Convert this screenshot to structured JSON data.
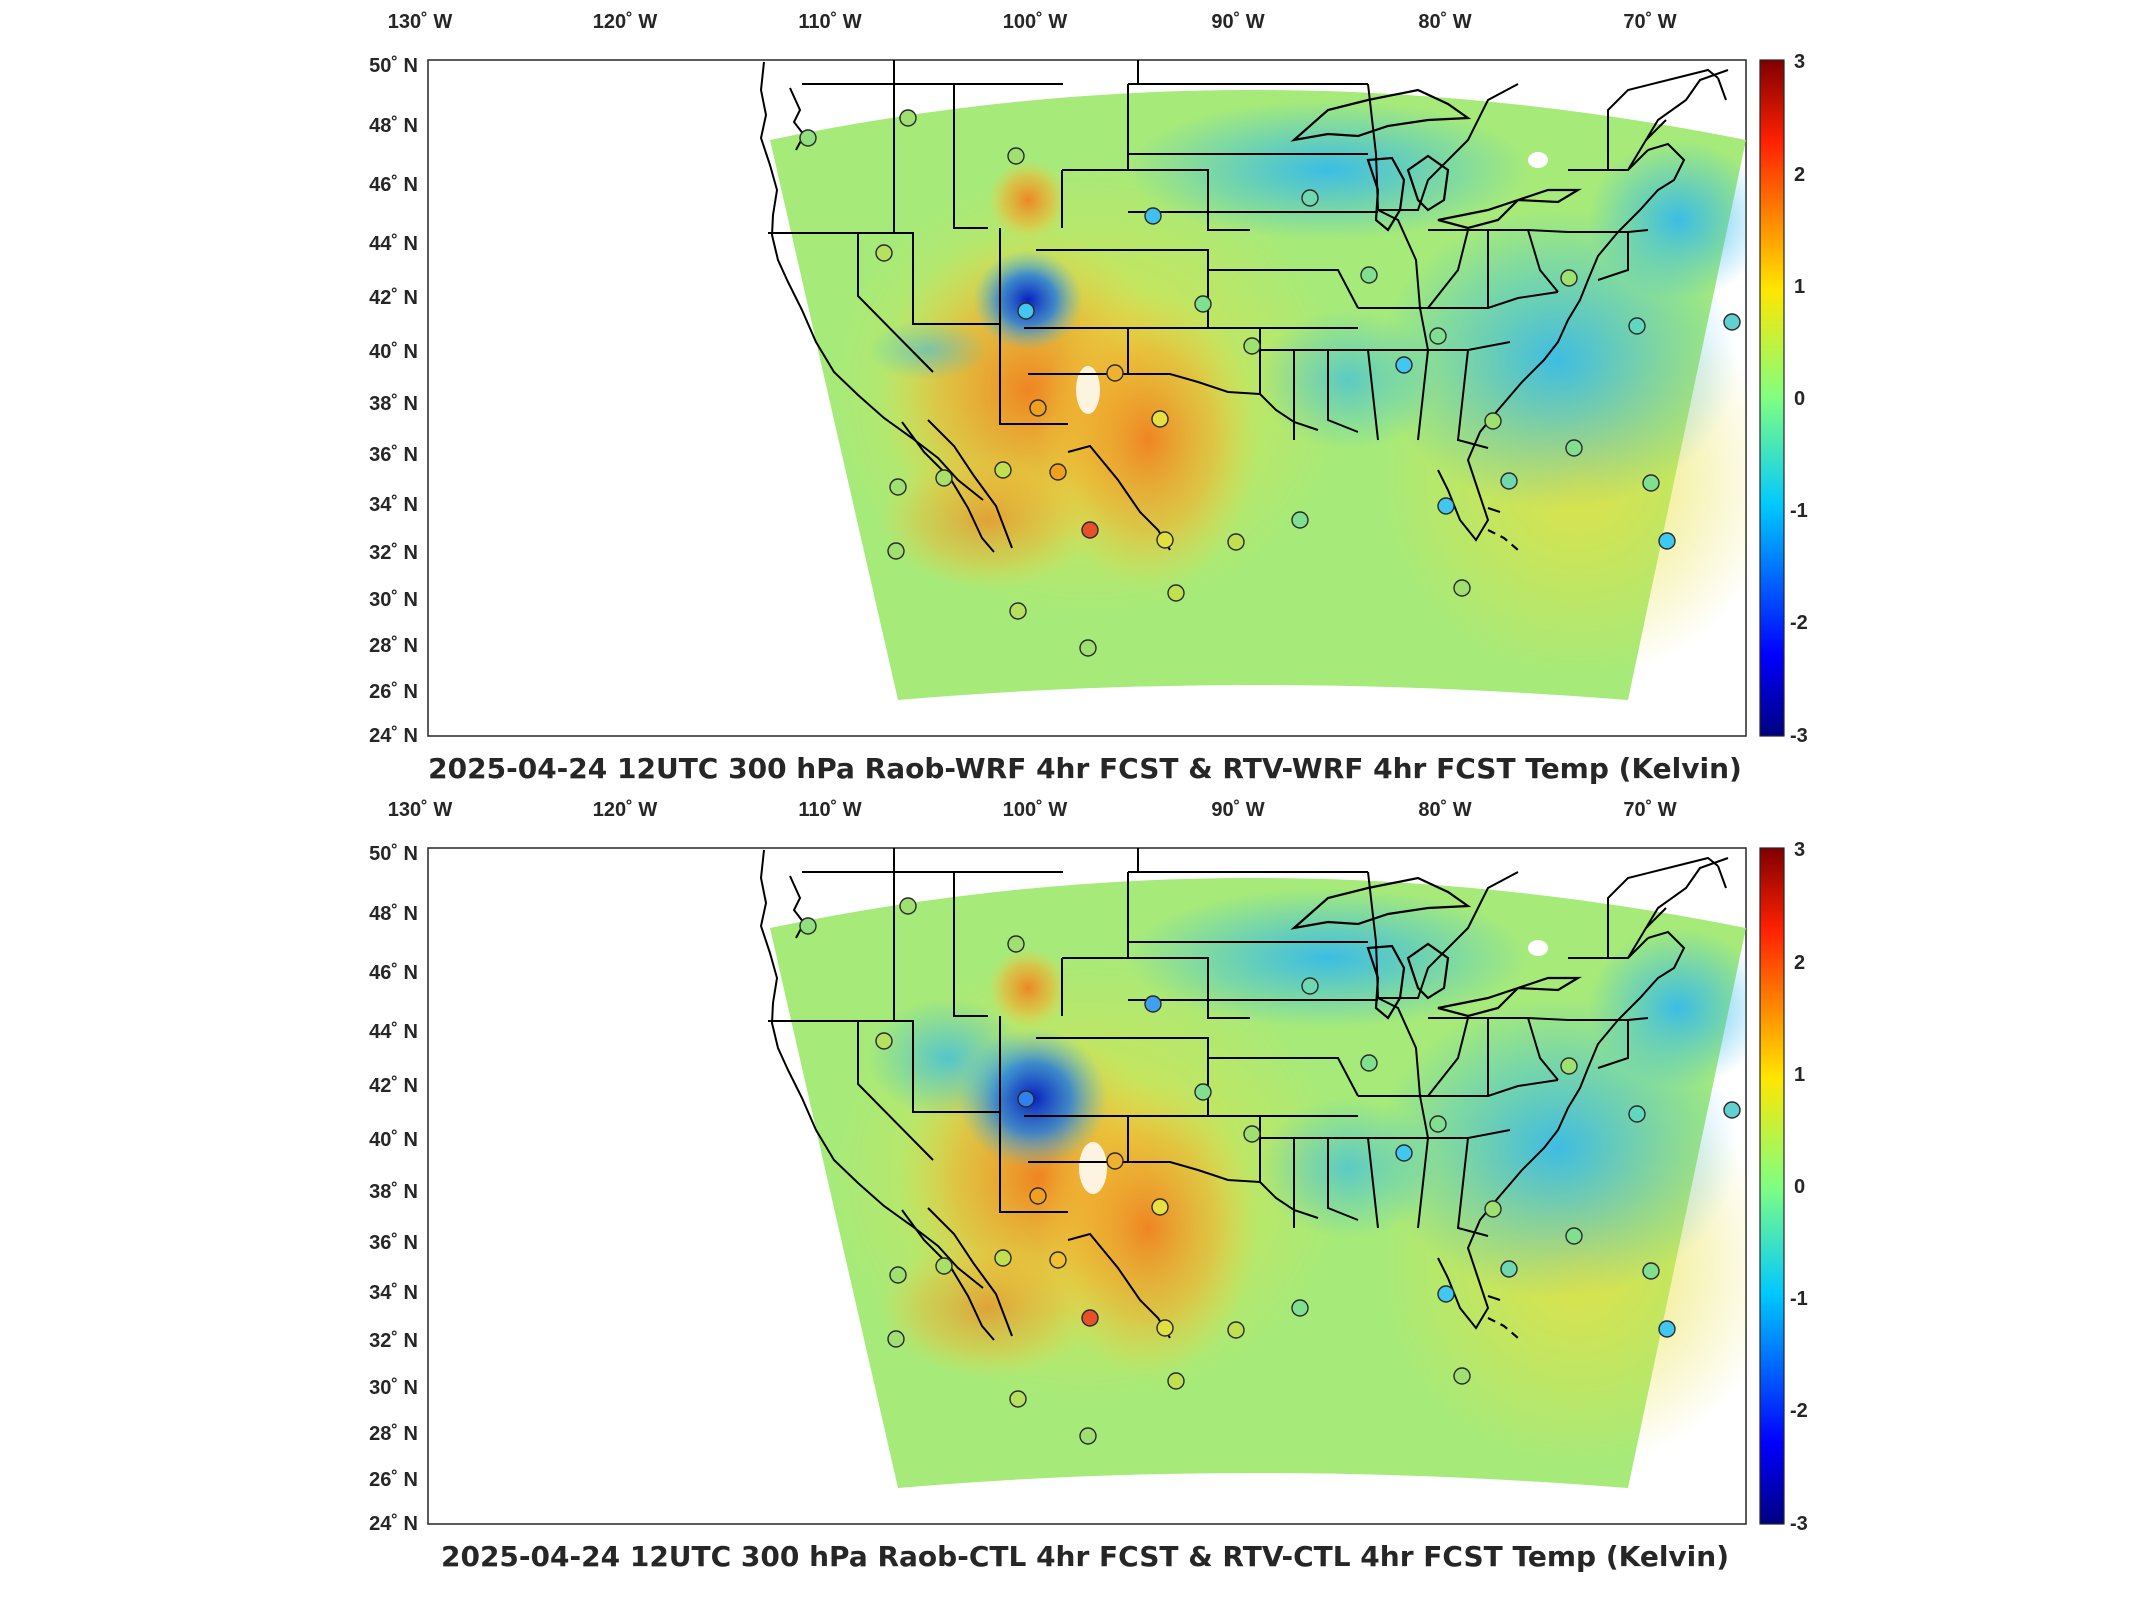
{
  "colors": {
    "field_mid": "#9fe88a",
    "warm": "#f4a020",
    "cool": "#38c8e8",
    "state_lines": "#000000",
    "frame": "#262626"
  },
  "panels": [
    {
      "title": "2025-04-24 12UTC 300 hPa Raob-WRF 4hr FCST & RTV-WRF 4hr FCST Temp (Kelvin)",
      "lon_labels": [
        "130˚ W",
        "120˚ W",
        "110˚ W",
        "100˚ W",
        "90˚ W",
        "80˚ W",
        "70˚ W"
      ],
      "lat_labels": [
        "50˚ N",
        "48˚ N",
        "46˚ N",
        "44˚ N",
        "42˚ N",
        "40˚ N",
        "38˚ N",
        "36˚ N",
        "34˚ N",
        "32˚ N",
        "30˚ N",
        "28˚ N",
        "26˚ N",
        "24˚ N"
      ],
      "colorbar": {
        "ticks": [
          "3",
          "2",
          "1",
          "0",
          "-1",
          "-2",
          "-3"
        ],
        "min": -3,
        "max": 3
      }
    },
    {
      "title": "2025-04-24 12UTC 300 hPa Raob-CTL 4hr FCST & RTV-CTL 4hr FCST Temp (Kelvin)",
      "lon_labels": [
        "130˚ W",
        "120˚ W",
        "110˚ W",
        "100˚ W",
        "90˚ W",
        "80˚ W",
        "70˚ W"
      ],
      "lat_labels": [
        "50˚ N",
        "48˚ N",
        "46˚ N",
        "44˚ N",
        "42˚ N",
        "40˚ N",
        "38˚ N",
        "36˚ N",
        "34˚ N",
        "32˚ N",
        "30˚ N",
        "28˚ N",
        "26˚ N",
        "24˚ N"
      ],
      "colorbar": {
        "ticks": [
          "3",
          "2",
          "1",
          "0",
          "-1",
          "-2",
          "-3"
        ],
        "min": -3,
        "max": 3
      }
    }
  ]
}
